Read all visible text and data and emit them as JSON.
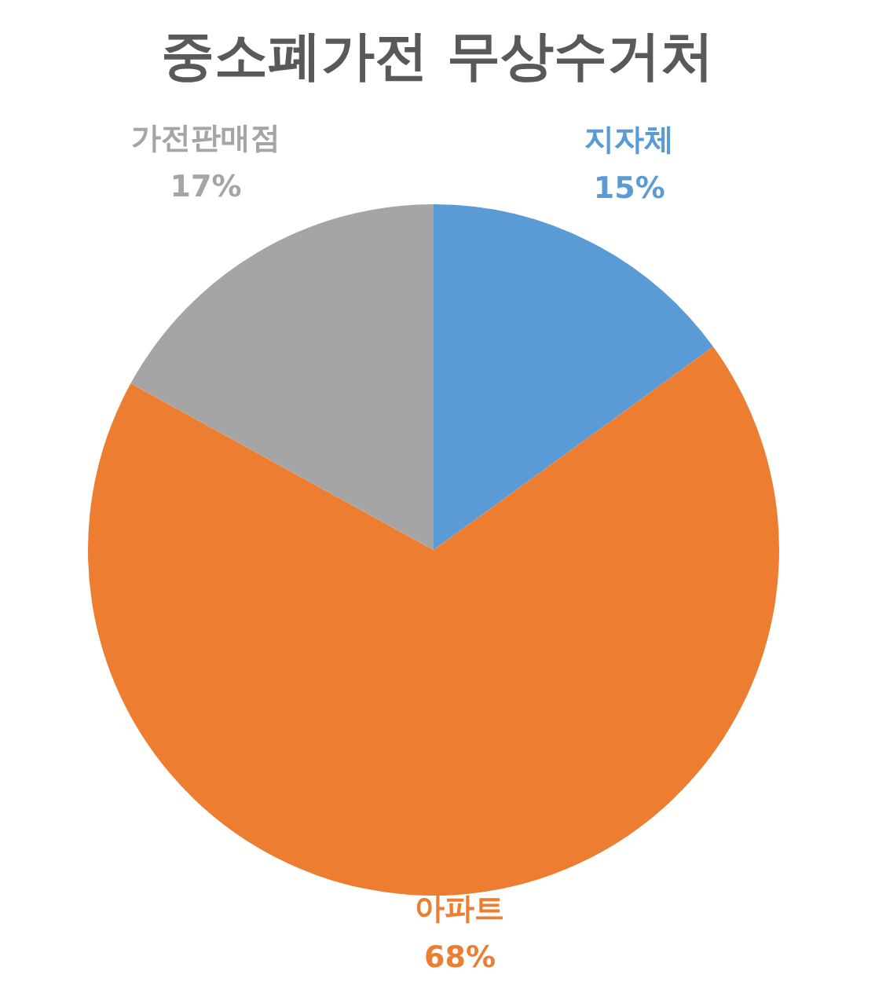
{
  "chart_data": {
    "type": "pie",
    "title": "중소폐가전 무상수거처",
    "categories": [
      "지자체",
      "아파트",
      "가전판매점"
    ],
    "values": [
      15,
      68,
      17
    ],
    "colors": [
      "#5b9bd5",
      "#ed7d31",
      "#a5a5a5"
    ],
    "value_labels": [
      "15%",
      "68%",
      "17%"
    ],
    "legend": false
  }
}
